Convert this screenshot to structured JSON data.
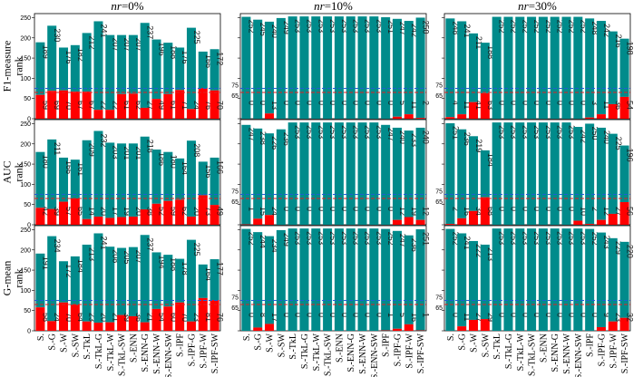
{
  "colors": {
    "teal": "#008b8b",
    "red": "#ff0000",
    "refBlue": "#1f5fd0",
    "refRed": "#e02020"
  },
  "chart_data": {
    "type": "bar",
    "ylim": [
      0,
      260
    ],
    "yticks": [
      "0",
      "50",
      "100",
      "150",
      "200",
      "250"
    ],
    "reference_lines": [
      75,
      65
    ],
    "ref_labels": [
      "75",
      "65"
    ],
    "column_titles": [
      "0%",
      "10%",
      "30%"
    ],
    "column_title_prefix": "nr",
    "column_title_sep": "=",
    "row_labels": [
      [
        "F1-measure",
        "rank"
      ],
      [
        "AUC",
        "rank"
      ],
      [
        "G-mean",
        "rank"
      ]
    ],
    "categories": [
      "S.",
      "S.-G",
      "S.-W",
      "S.-SW",
      "S.-TkL",
      "S.-TkL-G",
      "S.-TkL-W",
      "S.-TkL-SW",
      "S.-ENN",
      "S.-ENN-G",
      "S.-ENN-W",
      "S.-ENN-SW",
      "S.-IPF",
      "S.-IPF-G",
      "S.-IPF-W",
      "S.-IPF-SW"
    ],
    "panels": [
      {
        "row": 0,
        "col": 0,
        "total": [
          189,
          230,
          176,
          182,
          212,
          241,
          207,
          207,
          207,
          237,
          196,
          188,
          176,
          225,
          166,
          172
        ],
        "red": [
          59,
          69,
          70,
          67,
          67,
          22,
          22,
          61,
          62,
          27,
          49,
          61,
          71,
          24,
          76,
          70
        ]
      },
      {
        "row": 0,
        "col": 1,
        "total": [
          252,
          245,
          240,
          249,
          253,
          253,
          253,
          253,
          253,
          253,
          253,
          253,
          251,
          247,
          242,
          250
        ],
        "red": [
          0,
          0,
          13,
          0,
          0,
          0,
          0,
          0,
          0,
          0,
          0,
          0,
          0,
          5,
          11,
          2
        ]
      },
      {
        "row": 0,
        "col": 2,
        "total": [
          248,
          241,
          211,
          188,
          252,
          252,
          252,
          252,
          252,
          252,
          252,
          252,
          248,
          242,
          216,
          198
        ],
        "red": [
          4,
          11,
          41,
          63,
          0,
          0,
          0,
          0,
          0,
          0,
          0,
          0,
          3,
          11,
          36,
          54
        ]
      },
      {
        "row": 1,
        "col": 0,
        "total": [
          180,
          211,
          166,
          161,
          209,
          232,
          203,
          201,
          201,
          218,
          186,
          180,
          164,
          208,
          156,
          166
        ],
        "red": [
          42,
          39,
          57,
          65,
          14,
          20,
          17,
          19,
          20,
          38,
          52,
          59,
          62,
          20,
          73,
          49
        ]
      },
      {
        "row": 1,
        "col": 1,
        "total": [
          247,
          238,
          226,
          236,
          253,
          253,
          253,
          253,
          253,
          253,
          253,
          253,
          247,
          240,
          233,
          240
        ],
        "red": [
          1,
          15,
          24,
          0,
          0,
          0,
          0,
          0,
          0,
          0,
          0,
          0,
          0,
          12,
          19,
          12
        ]
      },
      {
        "row": 1,
        "col": 2,
        "total": [
          251,
          236,
          219,
          184,
          253,
          253,
          253,
          253,
          253,
          253,
          253,
          242,
          250,
          240,
          225,
          196
        ],
        "red": [
          2,
          16,
          34,
          68,
          0,
          0,
          0,
          0,
          0,
          0,
          0,
          10,
          2,
          12,
          27,
          56
        ]
      },
      {
        "row": 2,
        "col": 0,
        "total": [
          191,
          234,
          172,
          184,
          213,
          241,
          208,
          205,
          207,
          237,
          194,
          188,
          178,
          225,
          164,
          177
        ],
        "red": [
          58,
          24,
          70,
          64,
          23,
          20,
          21,
          39,
          36,
          21,
          54,
          60,
          70,
          23,
          81,
          76
        ]
      },
      {
        "row": 2,
        "col": 1,
        "total": [
          252,
          244,
          234,
          249,
          253,
          253,
          253,
          253,
          253,
          253,
          253,
          253,
          252,
          247,
          236,
          251
        ],
        "red": [
          0,
          8,
          17,
          0,
          0,
          0,
          0,
          0,
          0,
          0,
          0,
          0,
          1,
          5,
          16,
          1
        ]
      },
      {
        "row": 2,
        "col": 2,
        "total": [
          252,
          241,
          222,
          213,
          253,
          253,
          253,
          253,
          253,
          253,
          253,
          253,
          252,
          243,
          229,
          220
        ],
        "red": [
          0,
          11,
          27,
          29,
          0,
          0,
          0,
          0,
          0,
          0,
          0,
          0,
          0,
          9,
          23,
          32
        ]
      }
    ]
  }
}
